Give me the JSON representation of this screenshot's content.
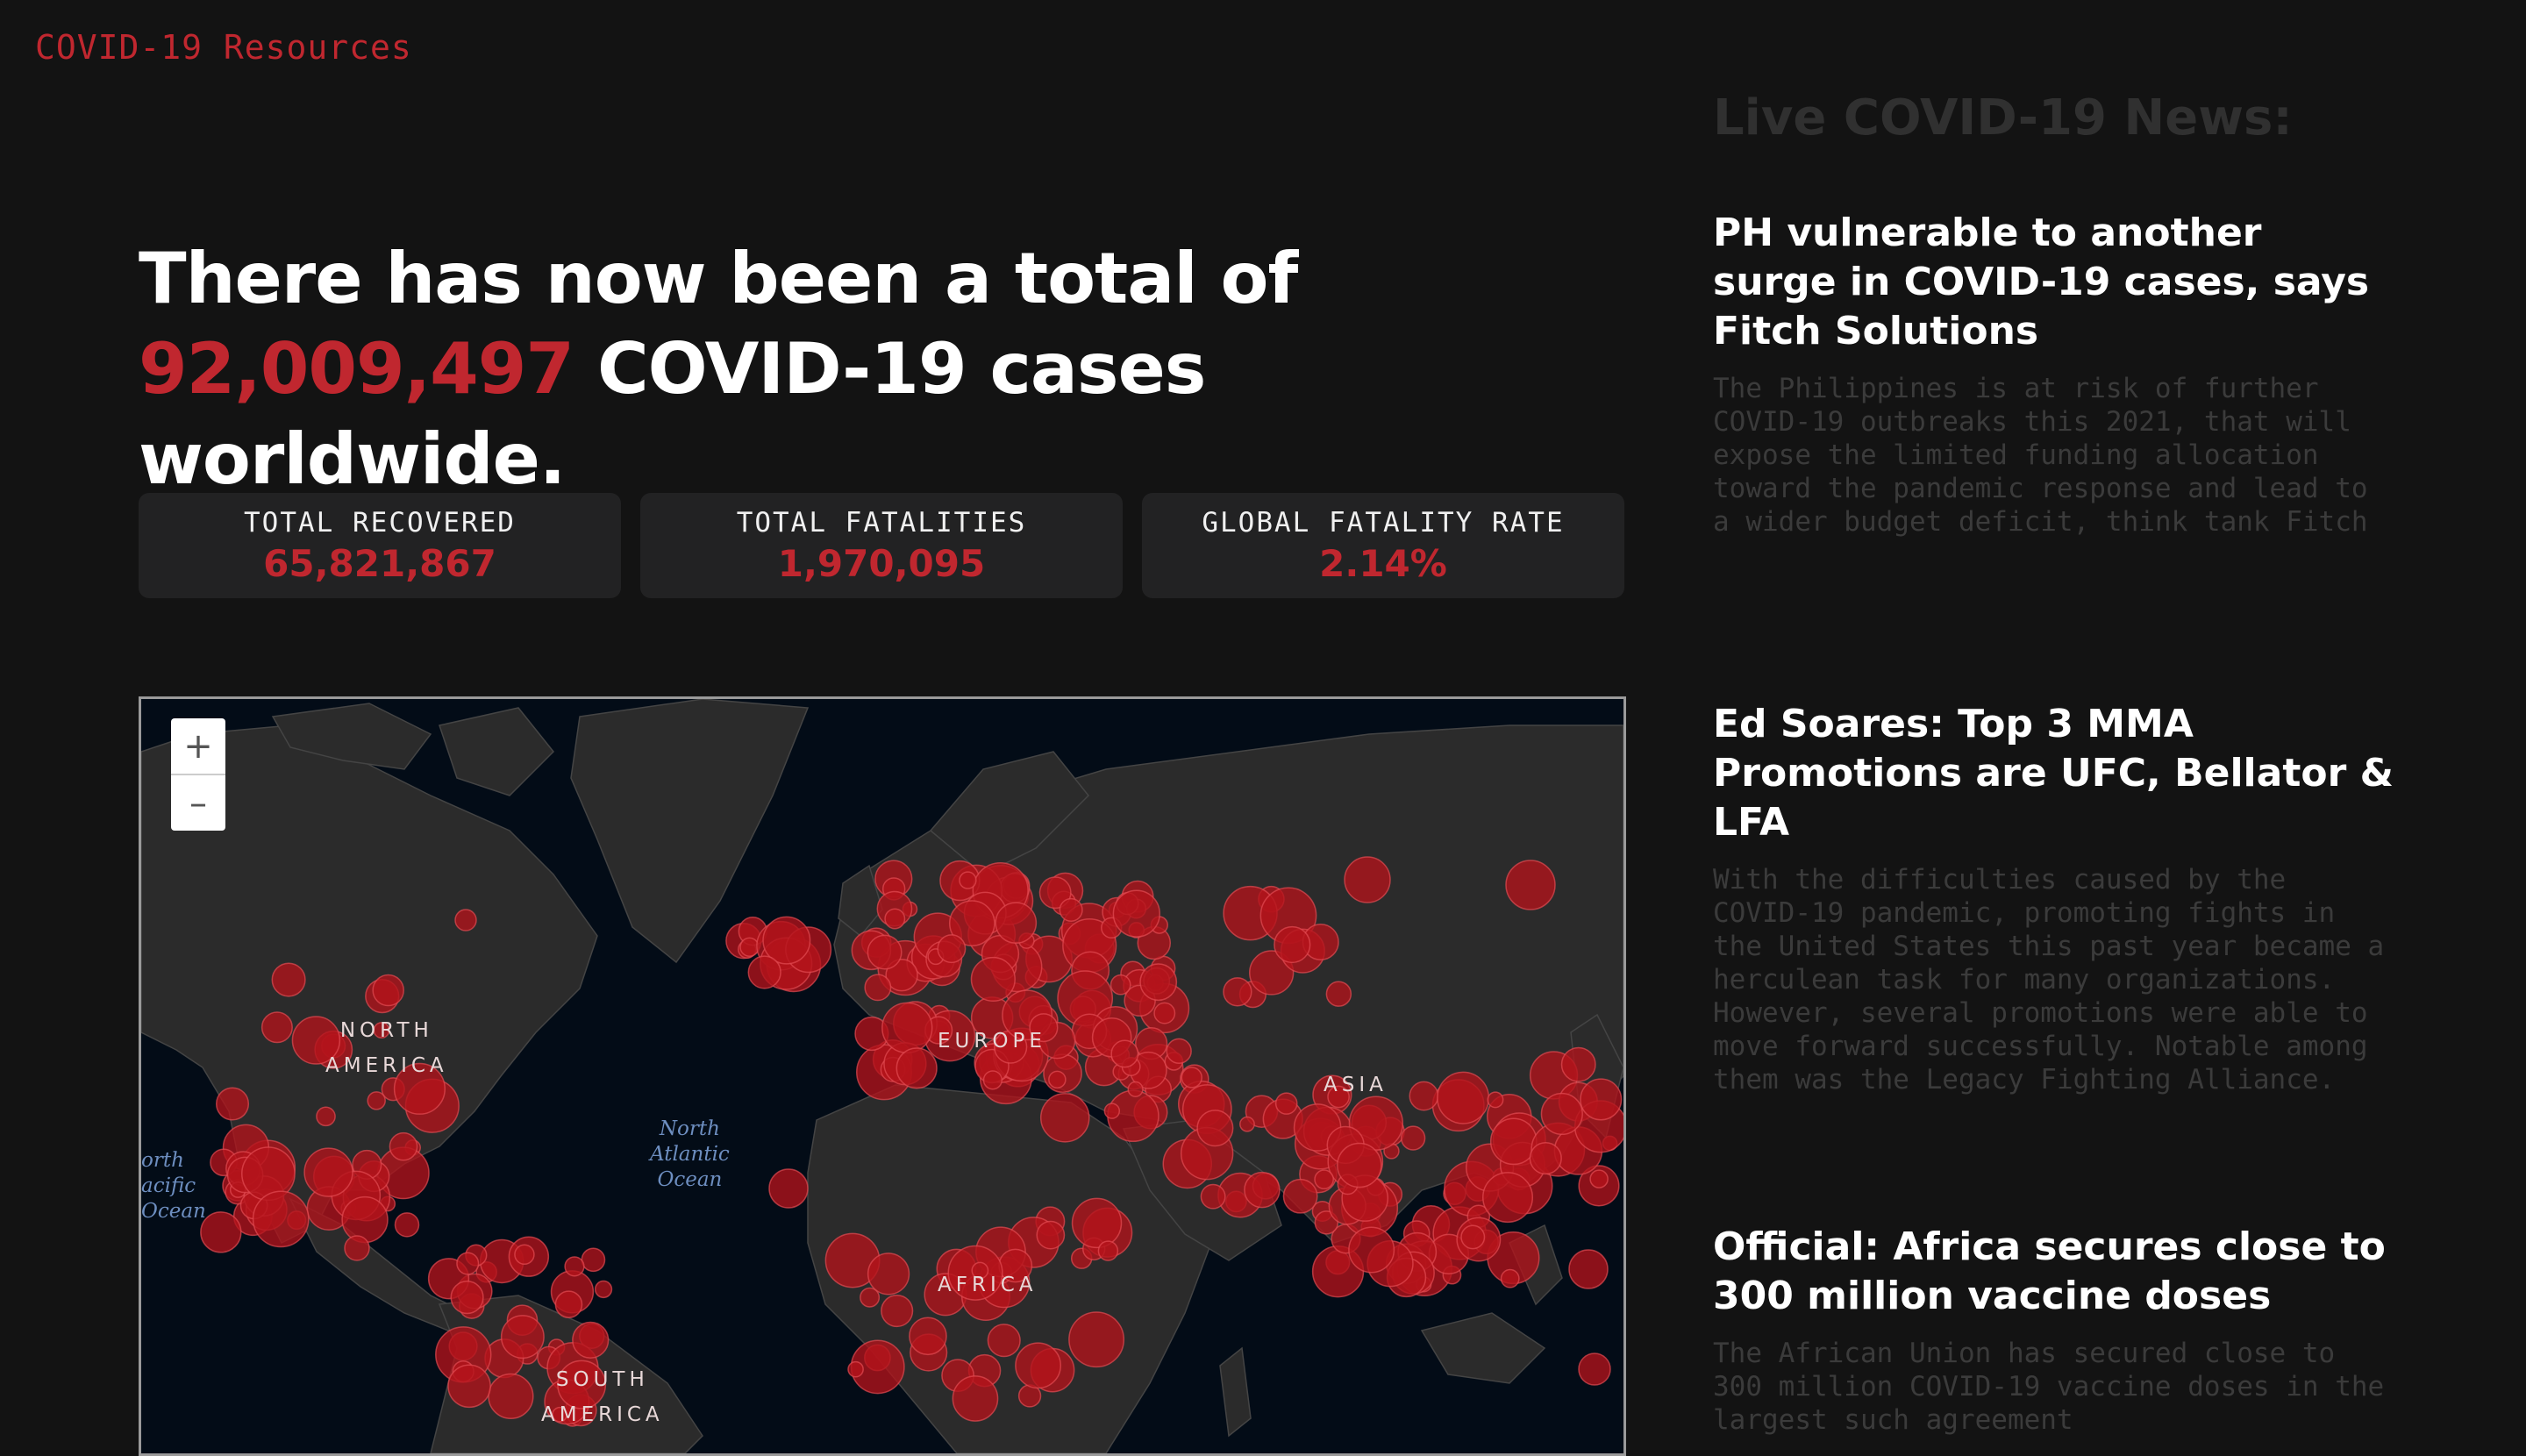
{
  "brand": "COVID-19 Resources",
  "headline": {
    "before": "There has now been a total of ",
    "number": "92,009,497",
    "after": " COVID-19 cases worldwide."
  },
  "stats": [
    {
      "label": "TOTAL RECOVERED",
      "value": "65,821,867"
    },
    {
      "label": "TOTAL FATALITIES",
      "value": "1,970,095"
    },
    {
      "label": "GLOBAL FATALITY RATE",
      "value": "2.14%"
    }
  ],
  "map": {
    "zoom_in": "+",
    "zoom_out": "–",
    "labels": {
      "north_america_1": "NORTH",
      "north_america_2": "AMERICA",
      "europe": "EUROPE",
      "asia": "ASIA",
      "africa": "AFRICA",
      "south_america_1": "SOUTH",
      "south_america_2": "AMERICA"
    },
    "oceans": {
      "north_atlantic_1": "North",
      "north_atlantic_2": "Atlantic",
      "north_atlantic_3": "Ocean",
      "north_pacific_1": "orth",
      "north_pacific_2": "acific",
      "north_pacific_3": "Ocean"
    },
    "colors": {
      "land": "#2b2b2b",
      "water": "#030c17",
      "marker": "#b3131b"
    }
  },
  "news": {
    "title": "Live COVID-19 News:",
    "items": [
      {
        "headline": "PH vulnerable to another surge in COVID-19 cases, says Fitch Solutions",
        "summary": "The Philippines is at risk of further COVID-19 outbreaks this 2021, that will expose the limited funding allocation toward the pandemic response and lead to a wider budget deficit, think tank Fitch"
      },
      {
        "headline": "Ed Soares: Top 3 MMA Promotions are UFC, Bellator & LFA",
        "summary": "With the difficulties caused by the COVID-19 pandemic, promoting fights in the United States this past year became a herculean task for many organizations. However, several promotions were able to move forward successfully. Notable among them was the Legacy Fighting Alliance."
      },
      {
        "headline": "Official: Africa secures close to 300 million vaccine doses",
        "summary": "The African Union has secured close to 300 million COVID-19 vaccine doses in the largest such agreement"
      }
    ]
  }
}
